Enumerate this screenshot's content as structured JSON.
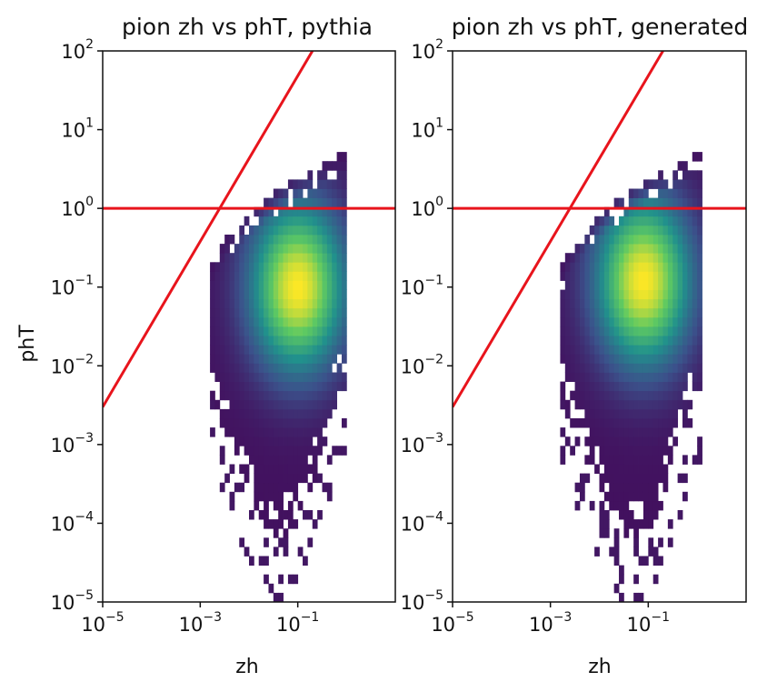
{
  "chart_data": [
    {
      "type": "heatmap",
      "title": "pion zh vs phT, pythia",
      "xlabel": "zh",
      "ylabel": "phT",
      "xscale": "log",
      "yscale": "log",
      "xlim": [
        1e-05,
        10
      ],
      "ylim": [
        1e-05,
        100
      ],
      "x_ticks": [
        {
          "base": "10",
          "exp": "−5",
          "value": 1e-05
        },
        {
          "base": "10",
          "exp": "−3",
          "value": 0.001
        },
        {
          "base": "10",
          "exp": "−1",
          "value": 0.1
        }
      ],
      "y_ticks": [
        {
          "base": "10",
          "exp": "−5",
          "value": 1e-05
        },
        {
          "base": "10",
          "exp": "−4",
          "value": 0.0001
        },
        {
          "base": "10",
          "exp": "−3",
          "value": 0.001
        },
        {
          "base": "10",
          "exp": "−2",
          "value": 0.01
        },
        {
          "base": "10",
          "exp": "−1",
          "value": 0.1
        },
        {
          "base": "10",
          "exp": "0",
          "value": 1
        },
        {
          "base": "10",
          "exp": "1",
          "value": 10
        },
        {
          "base": "10",
          "exp": "2",
          "value": 100
        }
      ],
      "colormap": "viridis",
      "density": {
        "x_range": [
          0.0015,
          0.9
        ],
        "peak": {
          "zh": 0.1,
          "phT": 0.1
        },
        "upper_edge_phT": 5,
        "lower_edge_phT": 1e-05
      },
      "reference_lines": [
        {
          "kind": "diagonal",
          "color": "#e8141c",
          "points": [
            [
              1e-05,
              0.003
            ],
            [
              0.2,
              100
            ]
          ]
        },
        {
          "kind": "horizontal",
          "color": "#e8141c",
          "y": 1
        }
      ],
      "grid": false,
      "legend": "none"
    },
    {
      "type": "heatmap",
      "title": "pion zh vs phT, generated",
      "xlabel": "zh",
      "ylabel": "",
      "xscale": "log",
      "yscale": "log",
      "xlim": [
        1e-05,
        10
      ],
      "ylim": [
        1e-05,
        100
      ],
      "x_ticks": [
        {
          "base": "10",
          "exp": "−5",
          "value": 1e-05
        },
        {
          "base": "10",
          "exp": "−3",
          "value": 0.001
        },
        {
          "base": "10",
          "exp": "−1",
          "value": 0.1
        }
      ],
      "y_ticks": [
        {
          "base": "10",
          "exp": "−5",
          "value": 1e-05
        },
        {
          "base": "10",
          "exp": "−4",
          "value": 0.0001
        },
        {
          "base": "10",
          "exp": "−3",
          "value": 0.001
        },
        {
          "base": "10",
          "exp": "−2",
          "value": 0.01
        },
        {
          "base": "10",
          "exp": "−1",
          "value": 0.1
        },
        {
          "base": "10",
          "exp": "0",
          "value": 1
        },
        {
          "base": "10",
          "exp": "1",
          "value": 10
        },
        {
          "base": "10",
          "exp": "2",
          "value": 100
        }
      ],
      "colormap": "viridis",
      "density": {
        "x_range": [
          0.0015,
          1.2
        ],
        "peak": {
          "zh": 0.08,
          "phT": 0.12
        },
        "upper_edge_phT": 5,
        "lower_edge_phT": 1e-05
      },
      "reference_lines": [
        {
          "kind": "diagonal",
          "color": "#e8141c",
          "points": [
            [
              1e-05,
              0.003
            ],
            [
              0.2,
              100
            ]
          ]
        },
        {
          "kind": "horizontal",
          "color": "#e8141c",
          "y": 1
        }
      ],
      "grid": false,
      "legend": "none"
    }
  ]
}
